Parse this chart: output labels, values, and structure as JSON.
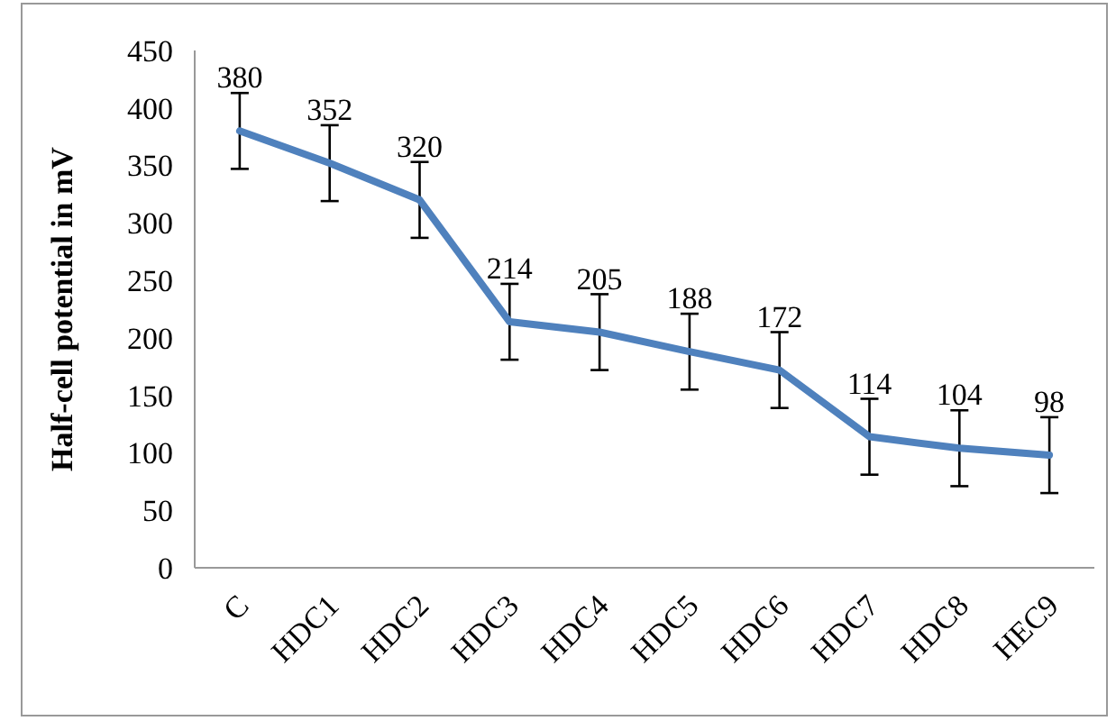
{
  "chart_data": {
    "type": "line",
    "ylabel": "Half-cell potential in mV",
    "categories": [
      "C",
      "HDC1",
      "HDC2",
      "HDC3",
      "HDC4",
      "HDC5",
      "HDC6",
      "HDC7",
      "HDC8",
      "HEC9"
    ],
    "series": [
      {
        "color": "#4f81bd",
        "values": [
          380,
          352,
          320,
          214,
          205,
          188,
          172,
          114,
          104,
          98
        ],
        "errors": [
          33,
          33,
          33,
          33,
          33,
          33,
          33,
          33,
          33,
          33
        ]
      }
    ],
    "ylim": [
      0,
      450
    ],
    "yticks": [
      0,
      50,
      100,
      150,
      200,
      250,
      300,
      350,
      400,
      450
    ],
    "data_labels": true,
    "grid": false,
    "marker": "none",
    "line_style": "solid"
  }
}
